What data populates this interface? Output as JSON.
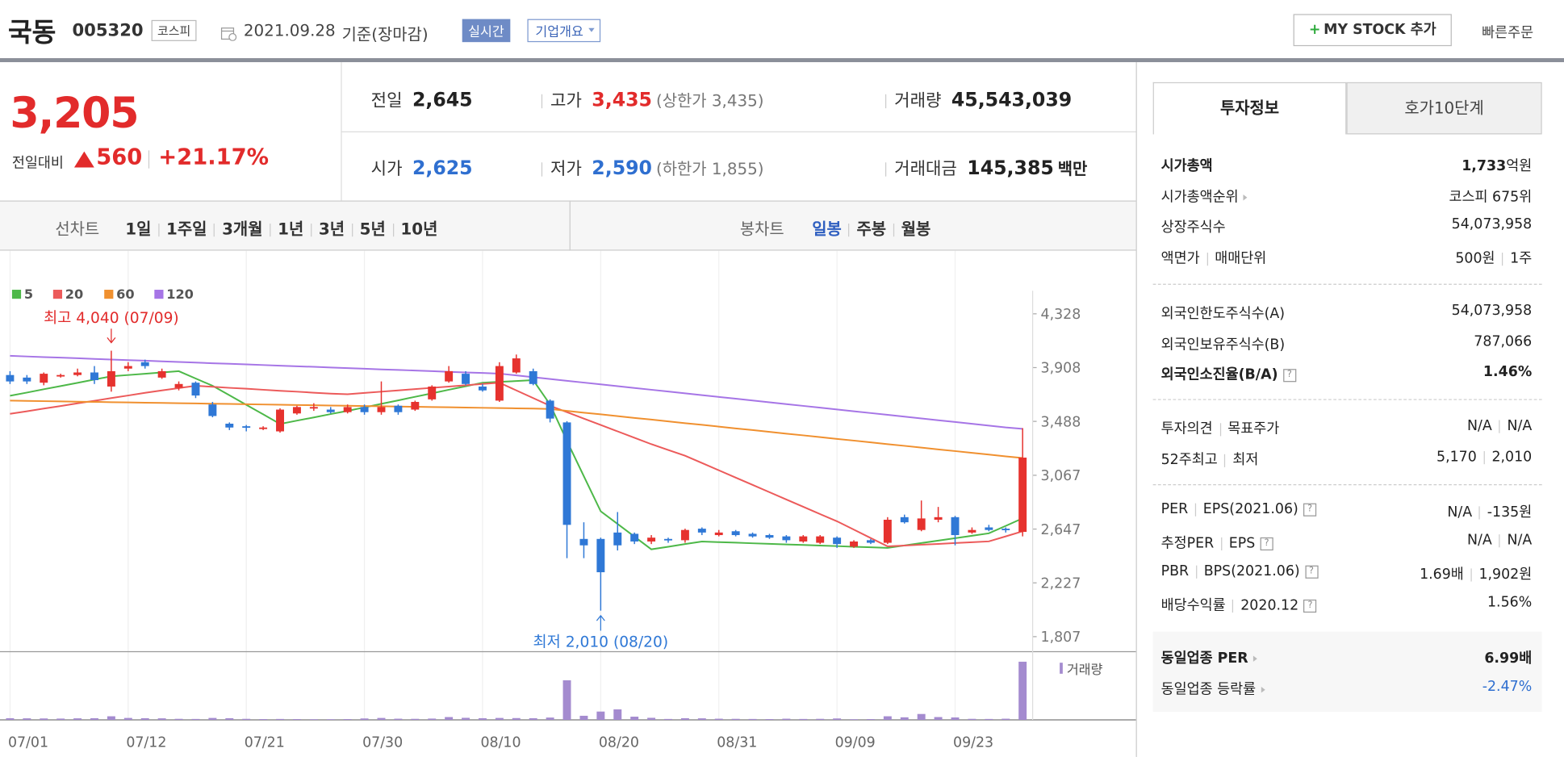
{
  "header": {
    "name": "국동",
    "code": "005320",
    "market": "코스피",
    "date": "2021.09.28",
    "basis": "기준(장마감)",
    "realtime": "실시간",
    "company_info": "기업개요",
    "my_stock": "MY STOCK 추가",
    "quick_order": "빠른주문"
  },
  "price": {
    "current": "3,205",
    "change_label": "전일대비",
    "change": "560",
    "change_rate": "+21.17%"
  },
  "stats": [
    [
      {
        "label": "전일",
        "value": "2,645"
      },
      {
        "label": "고가",
        "value": "3,435",
        "note": "(상한가 3,435)"
      },
      {
        "label": "거래량",
        "value": "45,543,039"
      }
    ],
    [
      {
        "label": "시가",
        "value": "2,625"
      },
      {
        "label": "저가",
        "value": "2,590",
        "note": "(하한가 1,855)"
      },
      {
        "label": "거래대금",
        "value": "145,385",
        "unit": "백만"
      }
    ]
  ],
  "periods": {
    "line_chart": "선차트",
    "line_options": [
      "1일",
      "1주일",
      "3개월",
      "1년",
      "3년",
      "5년",
      "10년"
    ],
    "candle_chart": "봉차트",
    "candle_options": [
      "일봉",
      "주봉",
      "월봉"
    ]
  },
  "tabs": [
    "투자정보",
    "호가10단계"
  ],
  "invest_info": [
    [
      {
        "label": [
          "시가총액"
        ],
        "value": [
          "1,733",
          "억원"
        ]
      },
      {
        "label": [
          "시가총액순위"
        ],
        "value": [
          "코스피 675위"
        ]
      },
      {
        "label": [
          "상장주식수"
        ],
        "value": [
          "54,073,958"
        ]
      },
      {
        "label": [
          "액면가",
          "매매단위"
        ],
        "value": [
          "500원",
          "1주"
        ]
      }
    ],
    [
      {
        "label": [
          "외국인한도주식수(A)"
        ],
        "value": [
          "54,073,958"
        ]
      },
      {
        "label": [
          "외국인보유주식수(B)"
        ],
        "value": [
          "787,066"
        ]
      },
      {
        "label": [
          "외국인소진율(B/A)"
        ],
        "value": [
          "1.46%"
        ]
      }
    ],
    [
      {
        "label": [
          "투자의견",
          "목표주가"
        ],
        "value": [
          "N/A",
          "N/A"
        ]
      },
      {
        "label": [
          "52주최고",
          "최저"
        ],
        "value": [
          "5,170",
          "2,010"
        ]
      }
    ],
    [
      {
        "label": [
          "PER",
          "EPS(2021.06)"
        ],
        "value": [
          "N/A",
          "-135원"
        ]
      },
      {
        "label": [
          "추정PER",
          "EPS"
        ],
        "value": [
          "N/A",
          "N/A"
        ]
      },
      {
        "label": [
          "PBR",
          "BPS(2021.06)"
        ],
        "value": [
          "1.69배",
          "1,902원"
        ]
      },
      {
        "label": [
          "배당수익률",
          "2020.12"
        ],
        "value": [
          "1.56%"
        ]
      }
    ],
    [
      {
        "label": [
          "동일업종 PER"
        ],
        "value": [
          "6.99배"
        ]
      },
      {
        "label": [
          "동일업종 등락률"
        ],
        "value": [
          "-2.47%"
        ]
      }
    ]
  ],
  "chart_data": {
    "type": "candlestick",
    "categories": [
      "07/01",
      null,
      null,
      null,
      null,
      null,
      null,
      "07/12",
      null,
      null,
      null,
      null,
      null,
      null,
      "07/21",
      null,
      null,
      null,
      null,
      null,
      null,
      "07/30",
      null,
      null,
      null,
      null,
      null,
      null,
      "08/10",
      null,
      null,
      null,
      null,
      null,
      null,
      "08/20",
      null,
      null,
      null,
      null,
      null,
      null,
      "08/31",
      null,
      null,
      null,
      null,
      null,
      null,
      "09/09",
      null,
      null,
      null,
      null,
      null,
      null,
      "09/23",
      null,
      null,
      null,
      null
    ],
    "open": [
      3850,
      3830,
      3790,
      3840,
      3850,
      3870,
      3760,
      3900,
      3950,
      3830,
      3750,
      3790,
      3620,
      3470,
      3450,
      3430,
      3410,
      3550,
      3590,
      3580,
      3560,
      3600,
      3560,
      3610,
      3580,
      3660,
      3800,
      3860,
      3760,
      3650,
      3870,
      3880,
      3650,
      3480,
      2570,
      2570,
      2620,
      2610,
      2550,
      2570,
      2560,
      2650,
      2600,
      2630,
      2610,
      2600,
      2590,
      2550,
      2540,
      2580,
      2510,
      2560,
      2540,
      2740,
      2640,
      2720,
      2740,
      2620,
      2660,
      2650,
      2625
    ],
    "high": [
      3880,
      3850,
      3870,
      3860,
      3900,
      3920,
      4040,
      3950,
      3970,
      3900,
      3800,
      3800,
      3640,
      3480,
      3460,
      3450,
      3590,
      3610,
      3630,
      3600,
      3620,
      3620,
      3800,
      3620,
      3650,
      3770,
      3920,
      3880,
      3780,
      3950,
      4010,
      3900,
      3660,
      3490,
      2700,
      2580,
      2780,
      2620,
      2600,
      2580,
      2650,
      2660,
      2640,
      2640,
      2620,
      2610,
      2600,
      2600,
      2600,
      2590,
      2560,
      2570,
      2740,
      2760,
      2870,
      2820,
      2750,
      2660,
      2680,
      2660,
      3435
    ],
    "low": [
      3780,
      3780,
      3770,
      3830,
      3840,
      3780,
      3720,
      3880,
      3900,
      3820,
      3730,
      3670,
      3520,
      3420,
      3410,
      3420,
      3400,
      3540,
      3570,
      3550,
      3550,
      3540,
      3540,
      3540,
      3570,
      3650,
      3790,
      3770,
      3720,
      3640,
      3860,
      3770,
      3480,
      2420,
      2420,
      2010,
      2480,
      2530,
      2530,
      2540,
      2540,
      2600,
      2590,
      2590,
      2580,
      2570,
      2540,
      2540,
      2530,
      2500,
      2500,
      2530,
      2530,
      2690,
      2630,
      2700,
      2520,
      2610,
      2630,
      2620,
      2590
    ],
    "close": [
      3800,
      3800,
      3860,
      3850,
      3870,
      3810,
      3880,
      3920,
      3920,
      3880,
      3780,
      3690,
      3530,
      3440,
      3440,
      3440,
      3580,
      3600,
      3600,
      3560,
      3600,
      3560,
      3600,
      3560,
      3640,
      3760,
      3880,
      3780,
      3730,
      3920,
      3980,
      3780,
      3510,
      2680,
      2520,
      2310,
      2520,
      2550,
      2580,
      2560,
      2640,
      2620,
      2620,
      2600,
      2590,
      2580,
      2560,
      2590,
      2590,
      2530,
      2550,
      2540,
      2720,
      2700,
      2730,
      2740,
      2600,
      2640,
      2640,
      2645,
      3205
    ],
    "volume": [
      1300000,
      1200000,
      1100000,
      1000000,
      1200000,
      1300000,
      2800000,
      1500000,
      1300000,
      1200000,
      800000,
      700000,
      1500000,
      1300000,
      800000,
      600000,
      700000,
      600000,
      500000,
      500000,
      600000,
      1100000,
      1500000,
      900000,
      800000,
      1000000,
      2200000,
      1600000,
      1300000,
      1500000,
      1400000,
      1300000,
      1800000,
      31000000,
      3200000,
      6500000,
      8200000,
      2500000,
      1600000,
      700000,
      1300000,
      1200000,
      900000,
      800000,
      700000,
      600000,
      900000,
      700000,
      800000,
      1100000,
      500000,
      600000,
      2800000,
      2000000,
      4600000,
      2200000,
      1900000,
      800000,
      700000,
      900000,
      45543039
    ],
    "up_color": "#e6322e",
    "down_color": "#2f78d6",
    "volume_color": "#a48bcf",
    "volume_label": "거래량",
    "series": [
      {
        "name": "5",
        "color": "#4db848",
        "values": [
          3688,
          3713,
          3739,
          3764,
          3789,
          3815,
          3840,
          3850,
          3860,
          3870,
          3880,
          3823,
          3766,
          3692,
          3617,
          3543,
          3468,
          3494,
          3519,
          3545,
          3570,
          3597,
          3625,
          3652,
          3680,
          3707,
          3735,
          3762,
          3790,
          3797,
          3803,
          3810,
          3620,
          3335,
          3060,
          2786,
          2687,
          2588,
          2489,
          2509,
          2530,
          2550,
          2545,
          2541,
          2536,
          2532,
          2527,
          2523,
          2518,
          2514,
          2509,
          2505,
          2500,
          2519,
          2538,
          2557,
          2576,
          2595,
          2614,
          2672,
          2731
        ]
      },
      {
        "name": "20",
        "color": "#ec5a5a",
        "values": [
          3547,
          3567,
          3588,
          3608,
          3629,
          3649,
          3670,
          3690,
          3711,
          3730,
          3748,
          3766,
          3758,
          3750,
          3743,
          3735,
          3727,
          3720,
          3712,
          3705,
          3700,
          3710,
          3720,
          3730,
          3740,
          3750,
          3760,
          3770,
          3780,
          3790,
          3730,
          3670,
          3610,
          3560,
          3510,
          3460,
          3410,
          3360,
          3310,
          3265,
          3220,
          3163,
          3106,
          3049,
          2992,
          2935,
          2878,
          2821,
          2764,
          2708,
          2643,
          2577,
          2512,
          2518,
          2525,
          2531,
          2538,
          2544,
          2551,
          2590,
          2630
        ]
      },
      {
        "name": "60",
        "color": "#f0902f",
        "values": [
          3650,
          3648,
          3646,
          3644,
          3642,
          3640,
          3638,
          3636,
          3634,
          3632,
          3630,
          3628,
          3626,
          3624,
          3622,
          3620,
          3618,
          3616,
          3614,
          3612,
          3610,
          3608,
          3606,
          3604,
          3602,
          3600,
          3598,
          3596,
          3594,
          3592,
          3590,
          3588,
          3585,
          3570,
          3556,
          3543,
          3529,
          3515,
          3502,
          3488,
          3474,
          3461,
          3447,
          3433,
          3420,
          3406,
          3392,
          3379,
          3365,
          3351,
          3338,
          3324,
          3310,
          3297,
          3283,
          3269,
          3256,
          3242,
          3229,
          3215,
          3202
        ]
      },
      {
        "name": "120",
        "color": "#a675e6",
        "values": [
          4000,
          3995,
          3990,
          3986,
          3981,
          3976,
          3971,
          3966,
          3962,
          3957,
          3952,
          3947,
          3942,
          3938,
          3933,
          3928,
          3923,
          3918,
          3914,
          3909,
          3904,
          3899,
          3894,
          3890,
          3885,
          3880,
          3875,
          3870,
          3866,
          3861,
          3847,
          3833,
          3819,
          3805,
          3791,
          3777,
          3763,
          3749,
          3735,
          3721,
          3707,
          3693,
          3679,
          3665,
          3651,
          3637,
          3623,
          3609,
          3595,
          3581,
          3567,
          3553,
          3539,
          3525,
          3511,
          3497,
          3483,
          3469,
          3455,
          3441,
          3430
        ]
      }
    ],
    "high_label": "최고 4,040 (07/09)",
    "low_label": "최저 2,010 (08/20)",
    "ylim": [
      1807,
      4328
    ],
    "yticks": [
      {
        "value": 4328,
        "label": "4,328"
      },
      {
        "value": 3908,
        "label": "3,908"
      },
      {
        "value": 3488,
        "label": "3,488"
      },
      {
        "value": 3067,
        "label": "3,067"
      },
      {
        "value": 2647,
        "label": "2,647"
      },
      {
        "value": 2227,
        "label": "2,227"
      },
      {
        "value": 1807,
        "label": "1,807"
      }
    ]
  }
}
